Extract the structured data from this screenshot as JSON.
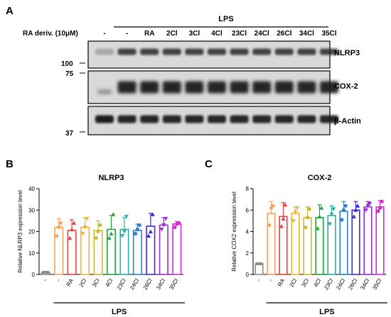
{
  "panels": {
    "a": "A",
    "b": "B",
    "c": "C"
  },
  "blot": {
    "lps_label": "LPS",
    "treatment_label": "RA deriv. (10μM)",
    "lanes": [
      "-",
      "-",
      "RA",
      "2Cl",
      "3Cl",
      "4Cl",
      "23Cl",
      "24Cl",
      "26Cl",
      "34Cl",
      "35Cl"
    ],
    "bands": [
      "NLRP3",
      "COX-2",
      "β-Actin"
    ],
    "mw_markers": [
      "100",
      "75",
      "37"
    ]
  },
  "chart_data": [
    {
      "type": "bar",
      "title": "NLRP3",
      "ylabel": "Relative NLRP3 expression level",
      "xlabel": "",
      "group_label": "LPS",
      "ylim": [
        0,
        40
      ],
      "yticks": [
        0,
        10,
        20,
        30,
        40
      ],
      "categories": [
        "-",
        "-",
        "RA",
        "2Cl",
        "3Cl",
        "4Cl",
        "23Cl",
        "24Cl",
        "26Cl",
        "34Cl",
        "35Cl"
      ],
      "values": [
        1,
        22,
        20.5,
        22,
        20.5,
        21,
        21,
        20.5,
        22.5,
        23,
        23.5
      ],
      "errors": [
        0.3,
        4,
        5,
        4.5,
        4.5,
        6.5,
        5.5,
        3,
        6,
        3.5,
        1.2
      ],
      "points": [
        [
          1,
          1,
          1
        ],
        [
          18,
          22,
          24
        ],
        [
          17,
          21,
          24
        ],
        [
          19,
          22,
          26
        ],
        [
          17,
          20,
          23
        ],
        [
          17,
          19,
          28
        ],
        [
          18,
          20,
          27
        ],
        [
          19,
          21,
          23
        ],
        [
          18,
          20,
          28
        ],
        [
          21,
          23,
          26
        ],
        [
          22,
          23.5,
          24
        ]
      ],
      "colors": [
        "#8c8c8c",
        "#f5a25d",
        "#f03b3b",
        "#f0b43c",
        "#c9ba2b",
        "#22a339",
        "#23b3a6",
        "#2a7fd6",
        "#3a2ad6",
        "#9a2ad6",
        "#d42ad6"
      ]
    },
    {
      "type": "bar",
      "title": "COX-2",
      "ylabel": "Relative COX2 expression level",
      "xlabel": "",
      "group_label": "LPS",
      "ylim": [
        0,
        8
      ],
      "yticks": [
        0,
        2,
        4,
        6,
        8
      ],
      "categories": [
        "-",
        "-",
        "RA",
        "2Cl",
        "3Cl",
        "4Cl",
        "23Cl",
        "24Cl",
        "26Cl",
        "34Cl",
        "35Cl"
      ],
      "values": [
        1,
        5.7,
        5.4,
        5.7,
        5.3,
        5.3,
        5.5,
        5.9,
        6,
        6.3,
        6.3
      ],
      "errors": [
        0.1,
        1.1,
        1.3,
        0.6,
        1,
        1.2,
        0.9,
        0.9,
        0.8,
        0.5,
        0.6
      ],
      "points": [
        [
          1,
          1,
          1
        ],
        [
          4.6,
          6.2,
          6.4
        ],
        [
          4.5,
          5.2,
          6.5
        ],
        [
          5,
          5.8,
          6.2
        ],
        [
          4.4,
          5.3,
          6.1
        ],
        [
          4.3,
          5.4,
          6.2
        ],
        [
          4.7,
          5.6,
          6.1
        ],
        [
          5.1,
          6,
          6.4
        ],
        [
          5.4,
          6,
          6.4
        ],
        [
          6,
          6.4,
          6.6
        ],
        [
          5.9,
          6.2,
          6.8
        ]
      ],
      "colors": [
        "#8c8c8c",
        "#f5a25d",
        "#f03b3b",
        "#f0b43c",
        "#c9ba2b",
        "#22a339",
        "#23b3a6",
        "#2a7fd6",
        "#3a2ad6",
        "#9a2ad6",
        "#d42ad6"
      ]
    }
  ]
}
